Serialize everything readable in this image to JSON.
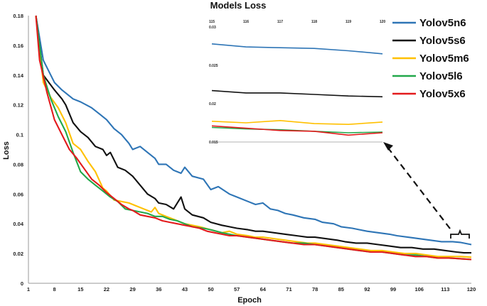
{
  "chart_data": {
    "type": "line",
    "title": "Models Loss",
    "xlabel": "Epoch",
    "ylabel": "Loss",
    "xlim": [
      1,
      120
    ],
    "ylim": [
      0,
      0.18
    ],
    "x_ticks": [
      "1",
      "8",
      "15",
      "22",
      "29",
      "36",
      "43",
      "50",
      "57",
      "64",
      "71",
      "78",
      "85",
      "92",
      "99",
      "106",
      "113",
      "120"
    ],
    "y_ticks": [
      "0",
      "0.02",
      "0.04",
      "0.06",
      "0.08",
      "0.1",
      "0.12",
      "0.14",
      "0.16",
      "0.18"
    ],
    "grid": false,
    "legend": "right",
    "series": [
      {
        "name": "Yolov5n6",
        "color": "#2E75B6",
        "points": [
          [
            3,
            0.18
          ],
          [
            5,
            0.15
          ],
          [
            8,
            0.135
          ],
          [
            10,
            0.13
          ],
          [
            13,
            0.124
          ],
          [
            15,
            0.122
          ],
          [
            18,
            0.118
          ],
          [
            20,
            0.114
          ],
          [
            22,
            0.11
          ],
          [
            24,
            0.104
          ],
          [
            26,
            0.1
          ],
          [
            28,
            0.094
          ],
          [
            29,
            0.09
          ],
          [
            31,
            0.092
          ],
          [
            33,
            0.088
          ],
          [
            35,
            0.084
          ],
          [
            36,
            0.08
          ],
          [
            38,
            0.08
          ],
          [
            40,
            0.076
          ],
          [
            42,
            0.074
          ],
          [
            43,
            0.078
          ],
          [
            45,
            0.072
          ],
          [
            48,
            0.07
          ],
          [
            50,
            0.063
          ],
          [
            52,
            0.065
          ],
          [
            55,
            0.06
          ],
          [
            57,
            0.058
          ],
          [
            60,
            0.055
          ],
          [
            62,
            0.053
          ],
          [
            64,
            0.054
          ],
          [
            66,
            0.05
          ],
          [
            68,
            0.049
          ],
          [
            70,
            0.047
          ],
          [
            72,
            0.046
          ],
          [
            75,
            0.044
          ],
          [
            78,
            0.043
          ],
          [
            80,
            0.041
          ],
          [
            83,
            0.04
          ],
          [
            85,
            0.038
          ],
          [
            88,
            0.037
          ],
          [
            90,
            0.036
          ],
          [
            92,
            0.035
          ],
          [
            95,
            0.034
          ],
          [
            98,
            0.033
          ],
          [
            100,
            0.032
          ],
          [
            103,
            0.031
          ],
          [
            106,
            0.03
          ],
          [
            109,
            0.029
          ],
          [
            112,
            0.028
          ],
          [
            115,
            0.028
          ],
          [
            117,
            0.0275
          ],
          [
            120,
            0.026
          ]
        ]
      },
      {
        "name": "Yolov5s6",
        "color": "#111111",
        "points": [
          [
            3,
            0.18
          ],
          [
            5,
            0.14
          ],
          [
            8,
            0.13
          ],
          [
            10,
            0.124
          ],
          [
            11,
            0.12
          ],
          [
            13,
            0.108
          ],
          [
            15,
            0.102
          ],
          [
            17,
            0.098
          ],
          [
            19,
            0.092
          ],
          [
            21,
            0.09
          ],
          [
            22,
            0.086
          ],
          [
            23,
            0.088
          ],
          [
            25,
            0.078
          ],
          [
            27,
            0.076
          ],
          [
            29,
            0.072
          ],
          [
            31,
            0.066
          ],
          [
            33,
            0.06
          ],
          [
            35,
            0.057
          ],
          [
            36,
            0.054
          ],
          [
            38,
            0.053
          ],
          [
            40,
            0.05
          ],
          [
            42,
            0.058
          ],
          [
            43,
            0.05
          ],
          [
            45,
            0.046
          ],
          [
            48,
            0.044
          ],
          [
            50,
            0.041
          ],
          [
            53,
            0.039
          ],
          [
            55,
            0.038
          ],
          [
            57,
            0.037
          ],
          [
            60,
            0.036
          ],
          [
            62,
            0.035
          ],
          [
            64,
            0.035
          ],
          [
            67,
            0.034
          ],
          [
            70,
            0.033
          ],
          [
            73,
            0.032
          ],
          [
            76,
            0.031
          ],
          [
            78,
            0.031
          ],
          [
            81,
            0.03
          ],
          [
            84,
            0.029
          ],
          [
            86,
            0.028
          ],
          [
            89,
            0.027
          ],
          [
            92,
            0.027
          ],
          [
            95,
            0.026
          ],
          [
            98,
            0.025
          ],
          [
            101,
            0.024
          ],
          [
            104,
            0.024
          ],
          [
            107,
            0.023
          ],
          [
            110,
            0.023
          ],
          [
            113,
            0.022
          ],
          [
            116,
            0.021
          ],
          [
            118,
            0.0205
          ],
          [
            120,
            0.0205
          ]
        ]
      },
      {
        "name": "Yolov5m6",
        "color": "#FFC000",
        "points": [
          [
            3,
            0.18
          ],
          [
            5,
            0.135
          ],
          [
            7,
            0.125
          ],
          [
            9,
            0.118
          ],
          [
            11,
            0.108
          ],
          [
            13,
            0.094
          ],
          [
            14,
            0.092
          ],
          [
            15,
            0.09
          ],
          [
            17,
            0.082
          ],
          [
            19,
            0.075
          ],
          [
            21,
            0.064
          ],
          [
            22,
            0.062
          ],
          [
            24,
            0.056
          ],
          [
            26,
            0.055
          ],
          [
            28,
            0.054
          ],
          [
            30,
            0.052
          ],
          [
            32,
            0.05
          ],
          [
            34,
            0.048
          ],
          [
            35,
            0.051
          ],
          [
            36,
            0.047
          ],
          [
            38,
            0.045
          ],
          [
            40,
            0.043
          ],
          [
            43,
            0.04
          ],
          [
            45,
            0.039
          ],
          [
            47,
            0.038
          ],
          [
            50,
            0.036
          ],
          [
            53,
            0.034
          ],
          [
            55,
            0.035
          ],
          [
            57,
            0.033
          ],
          [
            60,
            0.032
          ],
          [
            62,
            0.031
          ],
          [
            64,
            0.031
          ],
          [
            67,
            0.03
          ],
          [
            70,
            0.029
          ],
          [
            73,
            0.028
          ],
          [
            76,
            0.027
          ],
          [
            78,
            0.027
          ],
          [
            81,
            0.026
          ],
          [
            84,
            0.025
          ],
          [
            87,
            0.024
          ],
          [
            90,
            0.023
          ],
          [
            93,
            0.022
          ],
          [
            96,
            0.022
          ],
          [
            99,
            0.021
          ],
          [
            102,
            0.02
          ],
          [
            105,
            0.02
          ],
          [
            108,
            0.019
          ],
          [
            111,
            0.018
          ],
          [
            114,
            0.018
          ],
          [
            117,
            0.018
          ],
          [
            120,
            0.0175
          ]
        ]
      },
      {
        "name": "Yolov5l6",
        "color": "#22A84A",
        "points": [
          [
            3,
            0.18
          ],
          [
            5,
            0.14
          ],
          [
            7,
            0.124
          ],
          [
            9,
            0.112
          ],
          [
            11,
            0.102
          ],
          [
            13,
            0.088
          ],
          [
            15,
            0.075
          ],
          [
            17,
            0.07
          ],
          [
            19,
            0.066
          ],
          [
            21,
            0.062
          ],
          [
            23,
            0.058
          ],
          [
            25,
            0.055
          ],
          [
            27,
            0.05
          ],
          [
            29,
            0.049
          ],
          [
            31,
            0.048
          ],
          [
            33,
            0.047
          ],
          [
            35,
            0.045
          ],
          [
            37,
            0.045
          ],
          [
            39,
            0.043
          ],
          [
            41,
            0.042
          ],
          [
            43,
            0.04
          ],
          [
            45,
            0.038
          ],
          [
            48,
            0.037
          ],
          [
            50,
            0.036
          ],
          [
            53,
            0.034
          ],
          [
            55,
            0.033
          ],
          [
            57,
            0.032
          ],
          [
            60,
            0.031
          ],
          [
            63,
            0.03
          ],
          [
            66,
            0.029
          ],
          [
            69,
            0.028
          ],
          [
            72,
            0.027
          ],
          [
            75,
            0.027
          ],
          [
            78,
            0.026
          ],
          [
            81,
            0.025
          ],
          [
            84,
            0.024
          ],
          [
            87,
            0.023
          ],
          [
            90,
            0.022
          ],
          [
            93,
            0.021
          ],
          [
            96,
            0.021
          ],
          [
            99,
            0.02
          ],
          [
            102,
            0.019
          ],
          [
            105,
            0.019
          ],
          [
            108,
            0.018
          ],
          [
            111,
            0.017
          ],
          [
            114,
            0.017
          ],
          [
            117,
            0.0165
          ],
          [
            120,
            0.016
          ]
        ]
      },
      {
        "name": "Yolov5x6",
        "color": "#E31A1C",
        "points": [
          [
            3,
            0.18
          ],
          [
            4,
            0.15
          ],
          [
            6,
            0.128
          ],
          [
            8,
            0.11
          ],
          [
            10,
            0.1
          ],
          [
            12,
            0.09
          ],
          [
            14,
            0.084
          ],
          [
            16,
            0.077
          ],
          [
            18,
            0.07
          ],
          [
            20,
            0.066
          ],
          [
            22,
            0.061
          ],
          [
            24,
            0.057
          ],
          [
            26,
            0.053
          ],
          [
            28,
            0.05
          ],
          [
            29,
            0.049
          ],
          [
            31,
            0.046
          ],
          [
            33,
            0.045
          ],
          [
            35,
            0.044
          ],
          [
            37,
            0.042
          ],
          [
            39,
            0.041
          ],
          [
            41,
            0.04
          ],
          [
            43,
            0.039
          ],
          [
            45,
            0.038
          ],
          [
            47,
            0.037
          ],
          [
            49,
            0.035
          ],
          [
            51,
            0.034
          ],
          [
            53,
            0.033
          ],
          [
            55,
            0.032
          ],
          [
            57,
            0.032
          ],
          [
            60,
            0.031
          ],
          [
            63,
            0.03
          ],
          [
            66,
            0.029
          ],
          [
            69,
            0.028
          ],
          [
            72,
            0.027
          ],
          [
            75,
            0.026
          ],
          [
            78,
            0.026
          ],
          [
            81,
            0.025
          ],
          [
            84,
            0.024
          ],
          [
            87,
            0.023
          ],
          [
            90,
            0.022
          ],
          [
            93,
            0.021
          ],
          [
            96,
            0.021
          ],
          [
            99,
            0.02
          ],
          [
            102,
            0.019
          ],
          [
            105,
            0.018
          ],
          [
            108,
            0.018
          ],
          [
            111,
            0.017
          ],
          [
            114,
            0.017
          ],
          [
            117,
            0.0165
          ],
          [
            120,
            0.016
          ]
        ]
      }
    ],
    "inset": {
      "title": "Models Loss",
      "xlim": [
        115,
        120
      ],
      "ylim": [
        0.015,
        0.03
      ],
      "x_ticks": [
        "115",
        "116",
        "117",
        "118",
        "119",
        "120"
      ],
      "y_ticks": [
        "0.03",
        "0.025",
        "0.02",
        "0.015"
      ],
      "series": [
        {
          "name": "Yolov5n6",
          "color": "#2E75B6",
          "values": [
            0.0278,
            0.0274,
            0.0273,
            0.0272,
            0.0269,
            0.0265
          ]
        },
        {
          "name": "Yolov5s6",
          "color": "#111111",
          "values": [
            0.0217,
            0.0214,
            0.0214,
            0.0212,
            0.021,
            0.0209
          ]
        },
        {
          "name": "Yolov5m6",
          "color": "#FFC000",
          "values": [
            0.0177,
            0.0175,
            0.0178,
            0.0174,
            0.0173,
            0.0176
          ]
        },
        {
          "name": "Yolov5l6",
          "color": "#22A84A",
          "values": [
            0.0169,
            0.0167,
            0.0166,
            0.0164,
            0.0162,
            0.0163
          ]
        },
        {
          "name": "Yolov5x6",
          "color": "#E31A1C",
          "values": [
            0.0171,
            0.0168,
            0.0165,
            0.0164,
            0.0159,
            0.0162
          ]
        }
      ]
    }
  }
}
